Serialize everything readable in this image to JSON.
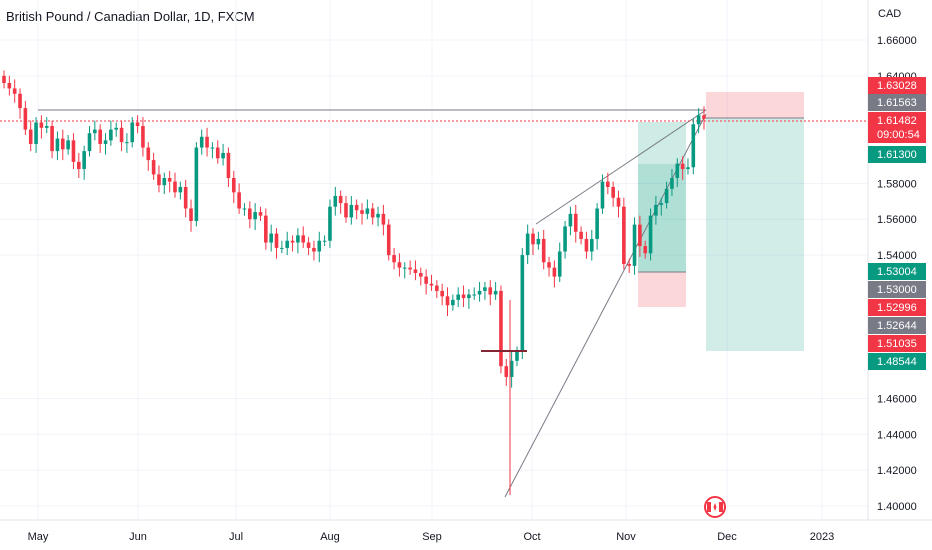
{
  "header": {
    "title": "British Pound / Canadian Dollar, 1D, FXCM",
    "currency": "CAD"
  },
  "chart_data": {
    "type": "candlestick",
    "yaxis_ticks": [
      "1.66000",
      "1.64000",
      "1.58000",
      "1.56000",
      "1.54000",
      "1.46000",
      "1.44000",
      "1.42000",
      "1.40000"
    ],
    "ylim": [
      1.395,
      1.672
    ],
    "xaxis_ticks": [
      "May",
      "Jun",
      "Jul",
      "Aug",
      "Sep",
      "Oct",
      "Nov",
      "Dec",
      "2023"
    ],
    "series": [
      {
        "values": [
          1.636,
          1.633,
          1.63,
          1.622,
          1.61,
          1.602,
          1.614,
          1.611,
          1.612,
          1.598,
          1.605,
          1.599,
          1.604,
          1.592,
          1.588,
          1.598,
          1.608,
          1.61,
          1.602,
          1.604,
          1.61,
          1.611,
          1.603,
          1.603,
          1.614,
          1.612,
          1.6,
          1.593,
          1.585,
          1.579,
          1.583,
          1.581,
          1.575,
          1.578,
          1.566,
          1.559,
          1.6,
          1.606,
          1.6,
          1.6,
          1.594,
          1.597,
          1.583,
          1.575,
          1.566,
          1.566,
          1.56,
          1.564,
          1.562,
          1.547,
          1.552,
          1.544,
          1.544,
          1.548,
          1.547,
          1.551,
          1.547,
          1.544,
          1.542,
          1.548,
          1.548,
          1.567,
          1.573,
          1.569,
          1.561,
          1.568,
          1.565,
          1.563,
          1.566,
          1.561,
          1.563,
          1.557,
          1.54,
          1.536,
          1.533,
          1.533,
          1.532,
          1.53,
          1.528,
          1.524,
          1.523,
          1.52,
          1.517,
          1.512,
          1.515,
          1.518,
          1.516,
          1.518,
          1.518,
          1.52,
          1.522,
          1.518,
          1.52,
          1.478,
          1.472,
          1.481,
          1.486,
          1.54,
          1.552,
          1.546,
          1.549,
          1.536,
          1.533,
          1.528,
          1.542,
          1.556,
          1.563,
          1.553,
          1.549,
          1.542,
          1.549,
          1.566,
          1.581,
          1.578,
          1.572,
          1.567,
          1.535,
          1.534,
          1.557,
          1.545,
          1.541,
          1.562,
          1.568,
          1.569,
          1.577,
          1.583,
          1.591,
          1.588,
          1.589,
          1.613,
          1.618,
          1.616
        ]
      }
    ],
    "price_tags": [
      {
        "label": "1.63028",
        "color": "#f23645"
      },
      {
        "label": "1.61563",
        "color": "#787b86"
      },
      {
        "label": "1.61482",
        "color": "#f23645"
      },
      {
        "label": "09:00:54",
        "color": "#f23645"
      },
      {
        "label": "1.61300",
        "color": "#089981"
      },
      {
        "label": "1.53004",
        "color": "#089981"
      },
      {
        "label": "1.53000",
        "color": "#787b86"
      },
      {
        "label": "1.52996",
        "color": "#f23645"
      },
      {
        "label": "1.52644",
        "color": "#787b86"
      },
      {
        "label": "1.51035",
        "color": "#f23645"
      },
      {
        "label": "1.48544",
        "color": "#089981"
      }
    ],
    "colors": {
      "up": "#089981",
      "down": "#f23645",
      "grid": "#f0f3fa"
    }
  }
}
